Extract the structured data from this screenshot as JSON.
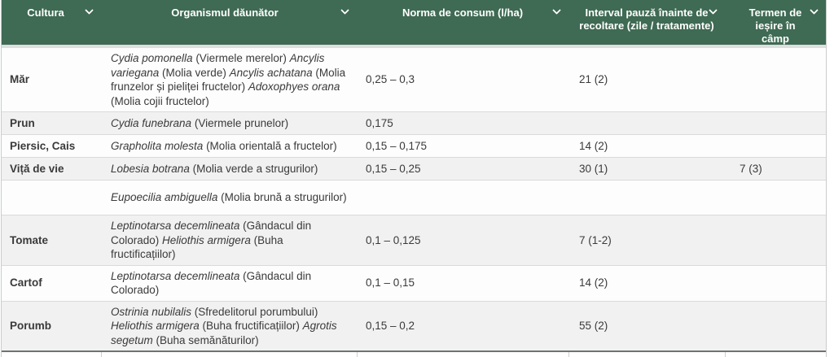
{
  "header": {
    "columns": [
      {
        "label": "Cultura"
      },
      {
        "label": "Organismul dăunător"
      },
      {
        "label": "Norma de consum (l/ha)"
      },
      {
        "label": "Interval pauză înainte de recoltare (zile / tratamente)"
      },
      {
        "label": "Termen de ieșire în câmp"
      }
    ],
    "sort_icon": "chevron-down"
  },
  "table": {
    "rows": [
      {
        "culture": "Măr",
        "organisms": [
          {
            "latin": "Cydia pomonella",
            "common": "(Viermele merelor)"
          },
          {
            "latin": "Ancylis variegana",
            "common": "(Molia verde)"
          },
          {
            "latin": "Ancylis achatana",
            "common": "(Molia frunzelor și pieliței fructelor)"
          },
          {
            "latin": "Adoxophyes orana",
            "common": "(Molia cojii fructelor)"
          }
        ],
        "norm": "0,25 – 0,3",
        "interval": "21 (2)",
        "exit": ""
      },
      {
        "culture": "Prun",
        "organisms": [
          {
            "latin": "Cydia funebrana",
            "common": "(Viermele prunelor)"
          }
        ],
        "norm": "0,175",
        "interval": "",
        "exit": ""
      },
      {
        "culture": "Piersic, Cais",
        "organisms": [
          {
            "latin": "Grapholita molesta",
            "common": "(Molia orientală a fructelor)"
          }
        ],
        "norm": "0,15 – 0,175",
        "interval": "14 (2)",
        "exit": ""
      },
      {
        "culture": "Viță de vie",
        "organisms": [
          {
            "latin": "Lobesia botrana",
            "common": "(Molia verde a strugurilor)"
          }
        ],
        "norm": "0,15 – 0,25",
        "interval": "30 (1)",
        "exit": "7 (3)"
      },
      {
        "culture": "",
        "organisms": [
          {
            "latin": "Eupoecilia ambiguella",
            "common": "(Molia brună a strugurilor)"
          }
        ],
        "norm": "",
        "interval": "",
        "exit": ""
      },
      {
        "culture": "Tomate",
        "organisms": [
          {
            "latin": "Leptinotarsa decemlineata",
            "common": "(Gândacul din Colorado)"
          },
          {
            "latin": "Heliothis armigera",
            "common": "(Buha fructificațiilor)"
          }
        ],
        "norm": "0,1 – 0,125",
        "interval": "7 (1-2)",
        "exit": ""
      },
      {
        "culture": "Cartof",
        "organisms": [
          {
            "latin": "Leptinotarsa decemlineata",
            "common": "(Gândacul din Colorado)"
          }
        ],
        "norm": "0,1 – 0,15",
        "interval": "14 (2)",
        "exit": ""
      },
      {
        "culture": "Porumb",
        "organisms": [
          {
            "latin": "Ostrinia nubilalis",
            "common": "(Sfredelitorul porumbului)"
          },
          {
            "latin": "Heliothis armigera",
            "common": "(Buha fructificațiilor)"
          },
          {
            "latin": "Agrotis segetum",
            "common": "(Buha semănăturilor)"
          }
        ],
        "norm": "0,15 – 0,2",
        "interval": "55 (2)",
        "exit": ""
      }
    ]
  },
  "colors": {
    "header_bg": "#3f6a53",
    "header_text": "#ffffff",
    "row_alt_bg": "#f1f1f2",
    "body_text": "#3a3a3a"
  }
}
